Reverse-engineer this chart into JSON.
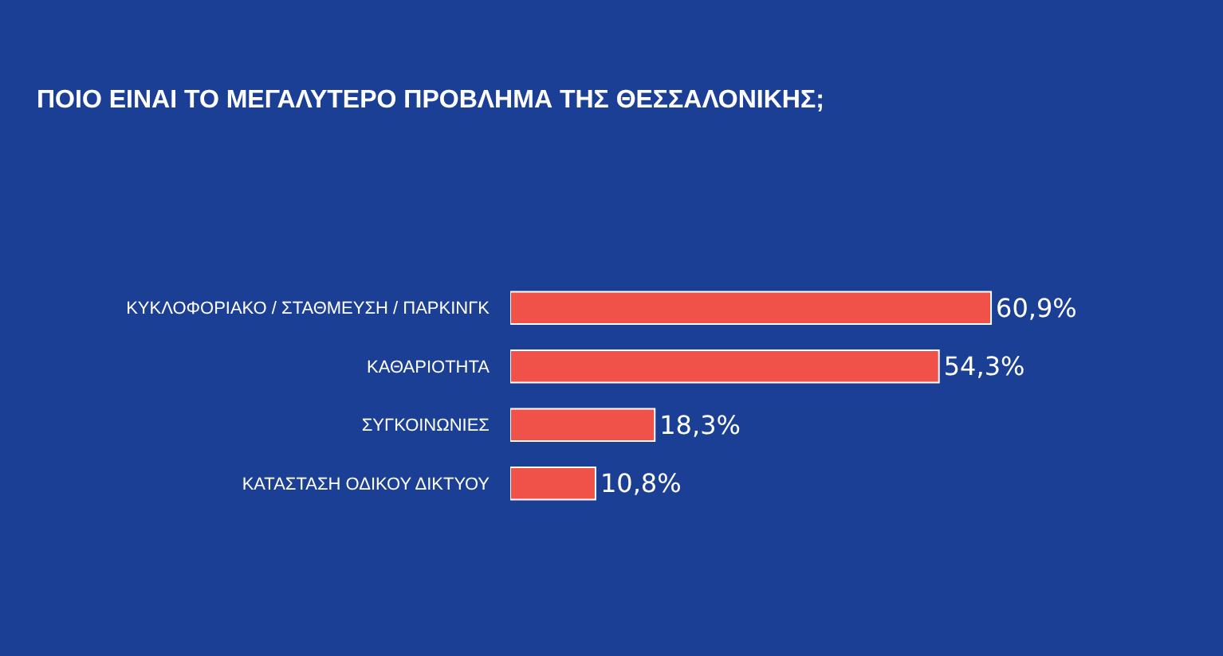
{
  "chart_data": {
    "type": "bar",
    "orientation": "horizontal",
    "title": "ΠΟΙΟ ΕΙΝΑΙ ΤΟ ΜΕΓΑΛΥΤΕΡΟ ΠΡΟΒΛΗΜΑ ΤΗΣ ΘΕΣΣΑΛΟΝΙΚΗΣ;",
    "categories": [
      "ΚΥΚΛΟΦΟΡΙΑΚΟ / ΣΤΑΘΜΕΥΣΗ / ΠΑΡΚΙΝΓΚ",
      "ΚΑΘΑΡΙΟΤΗΤΑ",
      "ΣΥΓΚΟΙΝΩΝΙΕΣ",
      "ΚΑΤΑΣΤΑΣΗ ΟΔΙΚΟΥ ΔΙΚΤΥΟΥ"
    ],
    "values": [
      60.9,
      54.3,
      18.3,
      10.8
    ],
    "value_labels": [
      "60,9%",
      "54,3%",
      "18,3%",
      "10,8%"
    ],
    "color": "#f0524a"
  }
}
